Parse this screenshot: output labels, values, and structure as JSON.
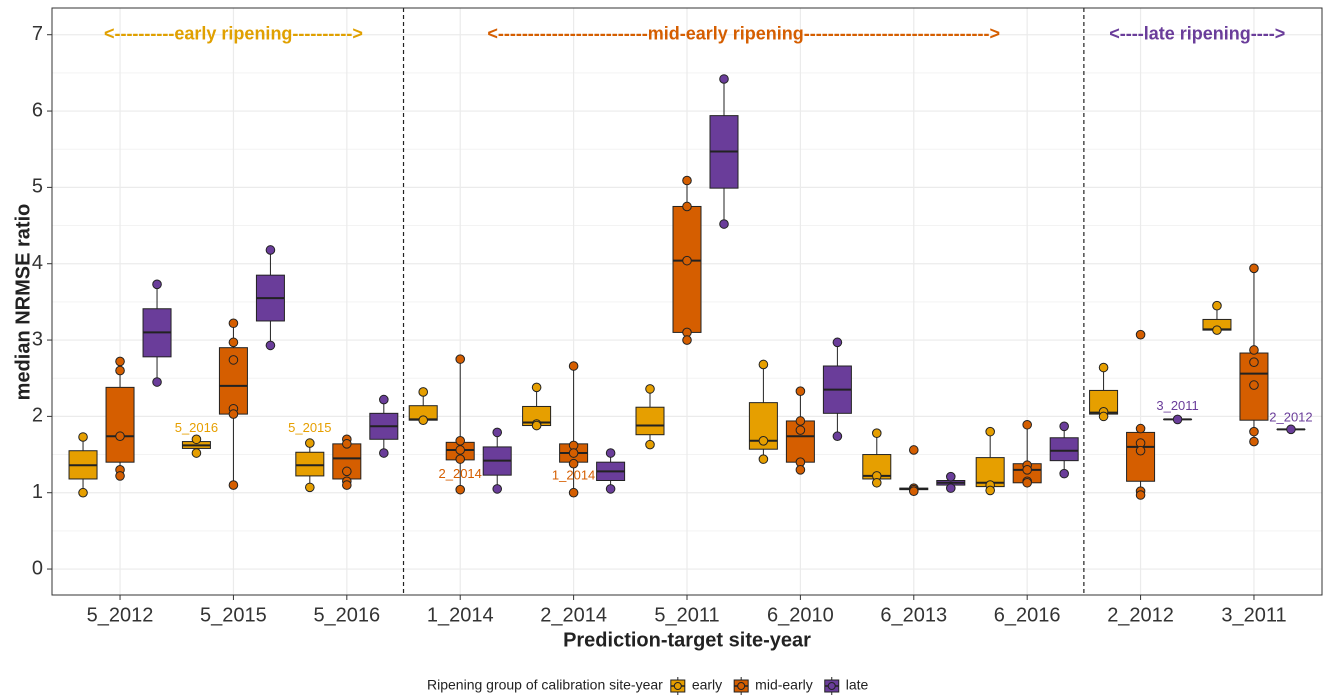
{
  "chart_data": {
    "type": "box",
    "y_label": "median NRMSE ratio",
    "x_label": "Prediction-target site-year",
    "legend_title": "Ripening group of calibration site-year",
    "categories": [
      "5_2012",
      "5_2015",
      "5_2016",
      "1_2014",
      "2_2014",
      "5_2011",
      "6_2010",
      "6_2013",
      "6_2016",
      "2_2012",
      "3_2011"
    ],
    "ylim": [
      -0.34,
      7.35
    ],
    "yticks": [
      0,
      1,
      2,
      3,
      4,
      5,
      6,
      7
    ],
    "grid": true,
    "minor_grid": true,
    "legend_position": "bottom",
    "series": [
      {
        "name": "early",
        "color": "#E69F00",
        "boxes": [
          {
            "min": 1.0,
            "q1": 1.18,
            "median": 1.36,
            "q3": 1.55,
            "max": 1.73,
            "points": [
              1.73,
              1.0
            ]
          },
          {
            "min": 1.52,
            "q1": 1.58,
            "median": 1.62,
            "q3": 1.67,
            "max": 1.7,
            "points": [
              1.7,
              1.52
            ]
          },
          {
            "min": 1.07,
            "q1": 1.22,
            "median": 1.36,
            "q3": 1.53,
            "max": 1.65,
            "points": [
              1.65,
              1.07
            ]
          },
          {
            "min": 1.95,
            "q1": 1.95,
            "median": 1.96,
            "q3": 2.14,
            "max": 2.32,
            "points": [
              2.32,
              1.95
            ]
          },
          {
            "min": 1.88,
            "q1": 1.88,
            "median": 1.92,
            "q3": 2.13,
            "max": 2.38,
            "points": [
              2.38,
              1.9,
              1.88
            ]
          },
          {
            "min": 1.63,
            "q1": 1.76,
            "median": 1.88,
            "q3": 2.12,
            "max": 2.36,
            "points": [
              2.36,
              1.63
            ]
          },
          {
            "min": 1.44,
            "q1": 1.57,
            "median": 1.68,
            "q3": 2.18,
            "max": 2.68,
            "points": [
              2.68,
              1.68,
              1.44
            ]
          },
          {
            "min": 1.13,
            "q1": 1.18,
            "median": 1.22,
            "q3": 1.5,
            "max": 1.78,
            "points": [
              1.78,
              1.22,
              1.13
            ]
          },
          {
            "min": 1.03,
            "q1": 1.08,
            "median": 1.13,
            "q3": 1.46,
            "max": 1.8,
            "points": [
              1.8,
              1.1,
              1.03
            ]
          },
          {
            "min": 2.0,
            "q1": 2.03,
            "median": 2.05,
            "q3": 2.34,
            "max": 2.64,
            "points": [
              2.64,
              2.06,
              2.0
            ]
          },
          {
            "min": 3.13,
            "q1": 3.13,
            "median": 3.14,
            "q3": 3.27,
            "max": 3.45,
            "points": [
              3.45,
              3.13
            ]
          }
        ]
      },
      {
        "name": "mid-early",
        "color": "#D55E00",
        "boxes": [
          {
            "min": 1.22,
            "q1": 1.4,
            "median": 1.74,
            "q3": 2.38,
            "max": 2.72,
            "points": [
              2.72,
              2.6,
              1.74,
              1.3,
              1.22
            ]
          },
          {
            "min": 1.1,
            "q1": 2.03,
            "median": 2.4,
            "q3": 2.9,
            "max": 3.22,
            "points": [
              3.22,
              2.97,
              2.74,
              2.1,
              2.03,
              1.1
            ]
          },
          {
            "min": 1.1,
            "q1": 1.18,
            "median": 1.45,
            "q3": 1.64,
            "max": 1.7,
            "points": [
              1.7,
              1.64,
              1.28,
              1.15,
              1.1
            ]
          },
          {
            "min": 1.04,
            "q1": 1.43,
            "median": 1.56,
            "q3": 1.66,
            "max": 2.75,
            "points": [
              2.75,
              1.68,
              1.56,
              1.44,
              1.04
            ]
          },
          {
            "min": 1.0,
            "q1": 1.4,
            "median": 1.52,
            "q3": 1.64,
            "max": 2.66,
            "points": [
              2.66,
              1.62,
              1.52,
              1.38,
              1.0
            ]
          },
          {
            "min": 3.0,
            "q1": 3.1,
            "median": 4.04,
            "q3": 4.75,
            "max": 5.09,
            "points": [
              5.09,
              4.75,
              4.04,
              3.1,
              3.0
            ]
          },
          {
            "min": 1.3,
            "q1": 1.4,
            "median": 1.74,
            "q3": 1.94,
            "max": 2.33,
            "points": [
              2.33,
              1.94,
              1.82,
              1.4,
              1.3
            ]
          },
          {
            "min": 1.02,
            "q1": 1.04,
            "median": 1.05,
            "q3": 1.06,
            "max": 1.07,
            "points": [
              1.56,
              1.06,
              1.04,
              1.02
            ]
          },
          {
            "min": 1.12,
            "q1": 1.13,
            "median": 1.3,
            "q3": 1.38,
            "max": 1.89,
            "points": [
              1.89,
              1.36,
              1.3,
              1.15,
              1.13
            ]
          },
          {
            "min": 0.97,
            "q1": 1.15,
            "median": 1.6,
            "q3": 1.79,
            "max": 1.84,
            "points": [
              3.07,
              1.84,
              1.65,
              1.55,
              1.02,
              0.97
            ]
          },
          {
            "min": 1.67,
            "q1": 1.95,
            "median": 2.56,
            "q3": 2.83,
            "max": 3.94,
            "points": [
              3.94,
              2.87,
              2.71,
              2.41,
              1.8,
              1.67
            ]
          }
        ]
      },
      {
        "name": "late",
        "color": "#6A3D9A",
        "boxes": [
          {
            "min": 2.45,
            "q1": 2.78,
            "median": 3.1,
            "q3": 3.41,
            "max": 3.73,
            "points": [
              3.73,
              2.45
            ]
          },
          {
            "min": 2.93,
            "q1": 3.25,
            "median": 3.55,
            "q3": 3.85,
            "max": 4.18,
            "points": [
              4.18,
              2.93
            ]
          },
          {
            "min": 1.52,
            "q1": 1.7,
            "median": 1.87,
            "q3": 2.04,
            "max": 2.22,
            "points": [
              2.22,
              1.52
            ]
          },
          {
            "min": 1.05,
            "q1": 1.23,
            "median": 1.42,
            "q3": 1.6,
            "max": 1.79,
            "points": [
              1.79,
              1.05
            ]
          },
          {
            "min": 1.05,
            "q1": 1.16,
            "median": 1.28,
            "q3": 1.4,
            "max": 1.52,
            "points": [
              1.52,
              1.05
            ]
          },
          {
            "min": 4.52,
            "q1": 4.99,
            "median": 5.47,
            "q3": 5.94,
            "max": 6.42,
            "points": [
              6.42,
              4.52
            ]
          },
          {
            "min": 1.74,
            "q1": 2.04,
            "median": 2.35,
            "q3": 2.66,
            "max": 2.97,
            "points": [
              2.97,
              1.74
            ]
          },
          {
            "min": 1.06,
            "q1": 1.1,
            "median": 1.13,
            "q3": 1.16,
            "max": 1.21,
            "points": [
              1.21,
              1.06
            ]
          },
          {
            "min": 1.25,
            "q1": 1.42,
            "median": 1.55,
            "q3": 1.72,
            "max": 1.87,
            "points": [
              1.87,
              1.25
            ]
          },
          {
            "min": 1.96,
            "q1": 1.96,
            "median": 1.96,
            "q3": 1.96,
            "max": 1.96,
            "points": [
              1.96
            ]
          },
          {
            "min": 1.83,
            "q1": 1.83,
            "median": 1.83,
            "q3": 1.83,
            "max": 1.83,
            "points": [
              1.83
            ]
          }
        ]
      }
    ],
    "annotations": [
      {
        "text": "5_2016",
        "category": 1,
        "series": 0,
        "y": 1.84
      },
      {
        "text": "5_2015",
        "category": 2,
        "series": 0,
        "y": 1.84
      },
      {
        "text": "2_2014",
        "category": 3,
        "series": 1,
        "y": 1.24
      },
      {
        "text": "1_2014",
        "category": 4,
        "series": 1,
        "y": 1.22
      },
      {
        "text": "3_2011",
        "category": 9,
        "series": 2,
        "y": 2.13
      },
      {
        "text": "2_2012",
        "category": 10,
        "series": 2,
        "y": 1.98
      }
    ],
    "regions": [
      {
        "label": "<----------early ripening---------->",
        "color": "#E0A000",
        "from": 0,
        "to": 2
      },
      {
        "label": "<-------------------------mid-early ripening------------------------------->",
        "color": "#D55E00",
        "from": 3,
        "to": 8
      },
      {
        "label": "<----late ripening---->",
        "color": "#6A3D9A",
        "from": 9,
        "to": 10
      }
    ],
    "region_label_y": 7
  }
}
